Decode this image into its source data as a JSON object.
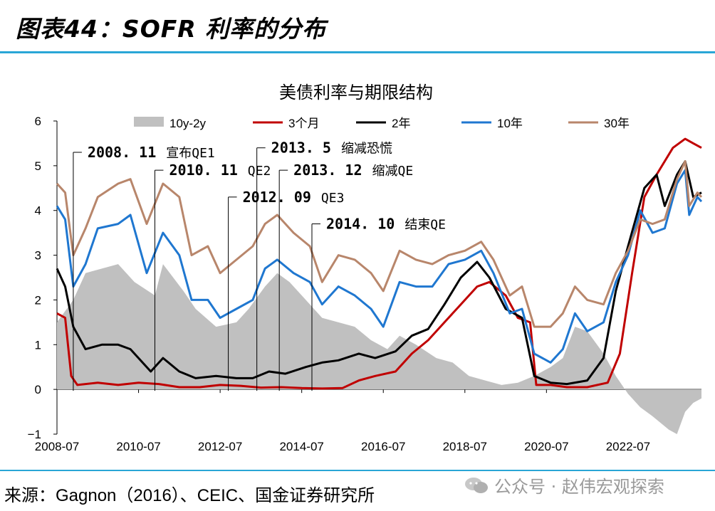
{
  "page": {
    "figure_title": "图表44：SOFR 利率的分布",
    "source": "来源：Gagnon（2016）、CEIC、国金证券研究所",
    "watermark": "公众号 · 赵伟宏观探索"
  },
  "colors": {
    "spread": "#c0c0c0",
    "m3": "#c00000",
    "y2": "#000000",
    "y10": "#1f77d0",
    "y30": "#b8866b",
    "rule": "#2aa6d6"
  },
  "chart_data": {
    "type": "line",
    "title": "美债利率与期限结构",
    "xlabel": "",
    "ylabel": "",
    "ylim": [
      -1,
      6
    ],
    "xlim": [
      2008.5,
      2024.3
    ],
    "yticks": [
      6,
      5,
      4,
      3,
      2,
      1,
      0,
      -1
    ],
    "xticks": [
      {
        "label": "2008-07",
        "x": 2008.5
      },
      {
        "label": "2010-07",
        "x": 2010.5
      },
      {
        "label": "2012-07",
        "x": 2012.5
      },
      {
        "label": "2014-07",
        "x": 2014.5
      },
      {
        "label": "2016-07",
        "x": 2016.5
      },
      {
        "label": "2018-07",
        "x": 2018.5
      },
      {
        "label": "2020-07",
        "x": 2020.5
      },
      {
        "label": "2022-07",
        "x": 2022.5
      }
    ],
    "legend": [
      "10y-2y",
      "3个月",
      "2年",
      "10年",
      "30年"
    ],
    "series": [
      {
        "name": "10y-2y",
        "kind": "area",
        "color_key": "spread",
        "points": [
          [
            2008.5,
            1.5
          ],
          [
            2008.9,
            2.0
          ],
          [
            2009.2,
            2.6
          ],
          [
            2009.6,
            2.7
          ],
          [
            2010.0,
            2.8
          ],
          [
            2010.4,
            2.4
          ],
          [
            2010.9,
            2.1
          ],
          [
            2011.1,
            2.8
          ],
          [
            2011.6,
            2.2
          ],
          [
            2011.9,
            1.8
          ],
          [
            2012.4,
            1.4
          ],
          [
            2012.9,
            1.5
          ],
          [
            2013.2,
            1.8
          ],
          [
            2013.6,
            2.3
          ],
          [
            2013.9,
            2.6
          ],
          [
            2014.2,
            2.4
          ],
          [
            2014.6,
            2.0
          ],
          [
            2015.0,
            1.6
          ],
          [
            2015.4,
            1.5
          ],
          [
            2015.8,
            1.4
          ],
          [
            2016.2,
            1.1
          ],
          [
            2016.6,
            0.9
          ],
          [
            2016.9,
            1.2
          ],
          [
            2017.3,
            1.0
          ],
          [
            2017.8,
            0.7
          ],
          [
            2018.2,
            0.6
          ],
          [
            2018.6,
            0.3
          ],
          [
            2019.0,
            0.2
          ],
          [
            2019.4,
            0.1
          ],
          [
            2019.8,
            0.15
          ],
          [
            2020.2,
            0.3
          ],
          [
            2020.6,
            0.5
          ],
          [
            2020.9,
            0.7
          ],
          [
            2021.2,
            1.4
          ],
          [
            2021.5,
            1.3
          ],
          [
            2021.9,
            0.8
          ],
          [
            2022.2,
            0.3
          ],
          [
            2022.5,
            -0.1
          ],
          [
            2022.8,
            -0.4
          ],
          [
            2023.1,
            -0.6
          ],
          [
            2023.5,
            -0.9
          ],
          [
            2023.7,
            -1.0
          ],
          [
            2023.9,
            -0.5
          ],
          [
            2024.1,
            -0.3
          ],
          [
            2024.3,
            -0.2
          ]
        ]
      },
      {
        "name": "3个月",
        "kind": "line",
        "color_key": "m3",
        "points": [
          [
            2008.5,
            1.7
          ],
          [
            2008.7,
            1.6
          ],
          [
            2008.85,
            0.3
          ],
          [
            2009.0,
            0.1
          ],
          [
            2009.5,
            0.15
          ],
          [
            2010.0,
            0.1
          ],
          [
            2010.5,
            0.15
          ],
          [
            2011.0,
            0.12
          ],
          [
            2011.5,
            0.05
          ],
          [
            2012.0,
            0.05
          ],
          [
            2012.5,
            0.1
          ],
          [
            2013.0,
            0.08
          ],
          [
            2013.5,
            0.04
          ],
          [
            2014.0,
            0.05
          ],
          [
            2014.5,
            0.03
          ],
          [
            2015.0,
            0.02
          ],
          [
            2015.5,
            0.03
          ],
          [
            2015.9,
            0.2
          ],
          [
            2016.3,
            0.3
          ],
          [
            2016.8,
            0.4
          ],
          [
            2017.2,
            0.8
          ],
          [
            2017.6,
            1.1
          ],
          [
            2018.0,
            1.5
          ],
          [
            2018.4,
            1.9
          ],
          [
            2018.8,
            2.3
          ],
          [
            2019.1,
            2.4
          ],
          [
            2019.5,
            2.1
          ],
          [
            2019.8,
            1.6
          ],
          [
            2020.1,
            1.5
          ],
          [
            2020.25,
            0.1
          ],
          [
            2020.6,
            0.1
          ],
          [
            2021.0,
            0.05
          ],
          [
            2021.5,
            0.05
          ],
          [
            2022.0,
            0.15
          ],
          [
            2022.3,
            0.8
          ],
          [
            2022.6,
            2.6
          ],
          [
            2022.9,
            4.3
          ],
          [
            2023.2,
            4.8
          ],
          [
            2023.6,
            5.4
          ],
          [
            2023.9,
            5.6
          ],
          [
            2024.1,
            5.5
          ],
          [
            2024.3,
            5.4
          ]
        ]
      },
      {
        "name": "2年",
        "kind": "line",
        "color_key": "y2",
        "points": [
          [
            2008.5,
            2.7
          ],
          [
            2008.7,
            2.3
          ],
          [
            2008.9,
            1.4
          ],
          [
            2009.2,
            0.9
          ],
          [
            2009.6,
            1.0
          ],
          [
            2010.0,
            1.0
          ],
          [
            2010.3,
            0.9
          ],
          [
            2010.8,
            0.4
          ],
          [
            2011.1,
            0.7
          ],
          [
            2011.5,
            0.4
          ],
          [
            2011.9,
            0.25
          ],
          [
            2012.4,
            0.3
          ],
          [
            2012.9,
            0.25
          ],
          [
            2013.3,
            0.25
          ],
          [
            2013.7,
            0.4
          ],
          [
            2014.1,
            0.35
          ],
          [
            2014.6,
            0.5
          ],
          [
            2015.0,
            0.6
          ],
          [
            2015.4,
            0.65
          ],
          [
            2015.9,
            0.8
          ],
          [
            2016.3,
            0.7
          ],
          [
            2016.8,
            0.85
          ],
          [
            2017.2,
            1.2
          ],
          [
            2017.6,
            1.35
          ],
          [
            2018.0,
            1.9
          ],
          [
            2018.4,
            2.5
          ],
          [
            2018.8,
            2.85
          ],
          [
            2019.1,
            2.5
          ],
          [
            2019.5,
            1.8
          ],
          [
            2019.9,
            1.6
          ],
          [
            2020.2,
            0.3
          ],
          [
            2020.6,
            0.15
          ],
          [
            2021.0,
            0.12
          ],
          [
            2021.5,
            0.2
          ],
          [
            2021.9,
            0.7
          ],
          [
            2022.2,
            2.2
          ],
          [
            2022.5,
            3.2
          ],
          [
            2022.9,
            4.5
          ],
          [
            2023.2,
            4.8
          ],
          [
            2023.4,
            4.1
          ],
          [
            2023.7,
            4.8
          ],
          [
            2023.9,
            5.1
          ],
          [
            2024.1,
            4.3
          ],
          [
            2024.3,
            4.4
          ]
        ]
      },
      {
        "name": "10年",
        "kind": "line",
        "color_key": "y10",
        "points": [
          [
            2008.5,
            4.1
          ],
          [
            2008.7,
            3.8
          ],
          [
            2008.9,
            2.3
          ],
          [
            2009.2,
            2.8
          ],
          [
            2009.5,
            3.6
          ],
          [
            2010.0,
            3.7
          ],
          [
            2010.3,
            3.9
          ],
          [
            2010.7,
            2.6
          ],
          [
            2011.1,
            3.5
          ],
          [
            2011.5,
            3.0
          ],
          [
            2011.8,
            2.0
          ],
          [
            2012.2,
            2.0
          ],
          [
            2012.5,
            1.6
          ],
          [
            2012.9,
            1.8
          ],
          [
            2013.3,
            2.0
          ],
          [
            2013.6,
            2.7
          ],
          [
            2013.9,
            2.9
          ],
          [
            2014.3,
            2.6
          ],
          [
            2014.7,
            2.4
          ],
          [
            2015.0,
            1.9
          ],
          [
            2015.4,
            2.3
          ],
          [
            2015.8,
            2.1
          ],
          [
            2016.2,
            1.8
          ],
          [
            2016.5,
            1.4
          ],
          [
            2016.9,
            2.4
          ],
          [
            2017.3,
            2.3
          ],
          [
            2017.7,
            2.3
          ],
          [
            2018.1,
            2.8
          ],
          [
            2018.5,
            2.9
          ],
          [
            2018.9,
            3.1
          ],
          [
            2019.2,
            2.6
          ],
          [
            2019.6,
            1.7
          ],
          [
            2019.9,
            1.8
          ],
          [
            2020.2,
            0.8
          ],
          [
            2020.6,
            0.6
          ],
          [
            2020.9,
            0.9
          ],
          [
            2021.2,
            1.7
          ],
          [
            2021.5,
            1.3
          ],
          [
            2021.9,
            1.5
          ],
          [
            2022.2,
            2.4
          ],
          [
            2022.5,
            3.0
          ],
          [
            2022.8,
            4.0
          ],
          [
            2023.1,
            3.5
          ],
          [
            2023.4,
            3.6
          ],
          [
            2023.7,
            4.6
          ],
          [
            2023.9,
            4.9
          ],
          [
            2024.0,
            3.9
          ],
          [
            2024.2,
            4.3
          ],
          [
            2024.3,
            4.2
          ]
        ]
      },
      {
        "name": "30年",
        "kind": "line",
        "color_key": "y30",
        "points": [
          [
            2008.5,
            4.6
          ],
          [
            2008.7,
            4.4
          ],
          [
            2008.9,
            3.0
          ],
          [
            2009.2,
            3.6
          ],
          [
            2009.5,
            4.3
          ],
          [
            2010.0,
            4.6
          ],
          [
            2010.3,
            4.7
          ],
          [
            2010.7,
            3.7
          ],
          [
            2011.1,
            4.6
          ],
          [
            2011.5,
            4.3
          ],
          [
            2011.8,
            3.0
          ],
          [
            2012.2,
            3.2
          ],
          [
            2012.5,
            2.6
          ],
          [
            2012.9,
            2.9
          ],
          [
            2013.3,
            3.2
          ],
          [
            2013.6,
            3.7
          ],
          [
            2013.9,
            3.9
          ],
          [
            2014.3,
            3.5
          ],
          [
            2014.7,
            3.2
          ],
          [
            2015.0,
            2.4
          ],
          [
            2015.4,
            3.0
          ],
          [
            2015.8,
            2.9
          ],
          [
            2016.2,
            2.6
          ],
          [
            2016.5,
            2.2
          ],
          [
            2016.9,
            3.1
          ],
          [
            2017.3,
            2.9
          ],
          [
            2017.7,
            2.8
          ],
          [
            2018.1,
            3.0
          ],
          [
            2018.5,
            3.1
          ],
          [
            2018.9,
            3.3
          ],
          [
            2019.2,
            2.9
          ],
          [
            2019.6,
            2.1
          ],
          [
            2019.9,
            2.3
          ],
          [
            2020.2,
            1.4
          ],
          [
            2020.6,
            1.4
          ],
          [
            2020.9,
            1.7
          ],
          [
            2021.2,
            2.3
          ],
          [
            2021.5,
            2.0
          ],
          [
            2021.9,
            1.9
          ],
          [
            2022.2,
            2.6
          ],
          [
            2022.5,
            3.1
          ],
          [
            2022.8,
            3.8
          ],
          [
            2023.1,
            3.7
          ],
          [
            2023.4,
            3.8
          ],
          [
            2023.7,
            4.7
          ],
          [
            2023.9,
            5.1
          ],
          [
            2024.0,
            4.1
          ],
          [
            2024.2,
            4.4
          ],
          [
            2024.3,
            4.3
          ]
        ]
      }
    ],
    "annotations": [
      {
        "date": "2008. 11",
        "text": "宣布QE1",
        "x": 2008.9,
        "y": 5.3
      },
      {
        "date": "2010. 11",
        "text": "QE2",
        "x": 2010.9,
        "y": 4.9
      },
      {
        "date": "2013. 5",
        "text": "缩减恐慌",
        "x": 2013.4,
        "y": 5.4
      },
      {
        "date": "2013. 12",
        "text": "缩减QE",
        "x": 2013.95,
        "y": 4.9
      },
      {
        "date": "2012. 09",
        "text": "QE3",
        "x": 2012.7,
        "y": 4.3
      },
      {
        "date": "2014. 10",
        "text": "结束QE",
        "x": 2014.75,
        "y": 3.7
      }
    ]
  }
}
